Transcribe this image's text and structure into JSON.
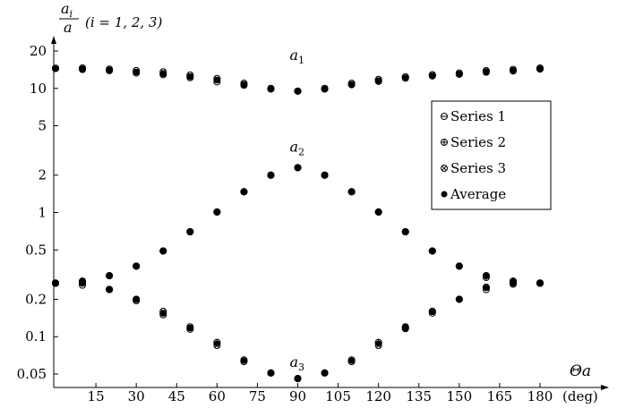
{
  "chart_data": {
    "type": "scatter",
    "title": "",
    "xlabel": "Θa",
    "xunit": "(deg)",
    "ylabel_numerator": "a_i",
    "ylabel_denominator": "a",
    "ylabel_note": "(i = 1, 2, 3)",
    "yscale": "log",
    "xlim": [
      0,
      180
    ],
    "ylim": [
      0.045,
      20
    ],
    "xticks": [
      15,
      30,
      45,
      60,
      75,
      90,
      105,
      120,
      135,
      150,
      165,
      180
    ],
    "yticks": [
      {
        "value": 0.05,
        "label": "0.05"
      },
      {
        "value": 0.1,
        "label": "0.1"
      },
      {
        "value": 0.2,
        "label": "0.2"
      },
      {
        "value": 0.5,
        "label": "0.5"
      },
      {
        "value": 1,
        "label": "1"
      },
      {
        "value": 2,
        "label": "2"
      },
      {
        "value": 5,
        "label": "5"
      },
      {
        "value": 10,
        "label": "10"
      },
      {
        "value": 20,
        "label": "20"
      }
    ],
    "grid": false,
    "legend": {
      "placement": "right"
    },
    "x": [
      0,
      10,
      20,
      30,
      40,
      50,
      60,
      70,
      80,
      90,
      100,
      110,
      120,
      130,
      140,
      150,
      160,
      170,
      180
    ],
    "series": [
      {
        "name": "Series 1",
        "marker": "circle-hbar",
        "a1": [
          14.5,
          14.2,
          13.9,
          13.3,
          12.9,
          12.2,
          11.3,
          10.6,
          9.9,
          9.5,
          9.9,
          10.7,
          11.4,
          12.1,
          12.6,
          13.0,
          13.5,
          13.8,
          14.3
        ],
        "a2": [
          0.27,
          0.27,
          0.31,
          0.37,
          0.49,
          0.7,
          1.01,
          1.47,
          2.0,
          2.3,
          2.0,
          1.47,
          1.01,
          0.7,
          0.49,
          0.37,
          0.31,
          0.27,
          0.27
        ],
        "a3": [
          0.27,
          0.26,
          0.24,
          0.195,
          0.15,
          0.115,
          0.088,
          0.064,
          0.051,
          0.046,
          0.051,
          0.064,
          0.088,
          0.116,
          0.155,
          0.2,
          0.24,
          0.265,
          0.27
        ]
      },
      {
        "name": "Series 2",
        "marker": "circle-plus",
        "a1": [
          14.5,
          14.4,
          14.1,
          13.6,
          13.2,
          12.5,
          11.7,
          10.8,
          9.9,
          9.5,
          9.9,
          10.8,
          11.6,
          12.2,
          12.7,
          13.1,
          13.7,
          14.0,
          14.4
        ],
        "a2": [
          0.27,
          0.28,
          0.31,
          0.37,
          0.49,
          0.7,
          1.01,
          1.47,
          2.0,
          2.3,
          2.0,
          1.47,
          1.01,
          0.7,
          0.49,
          0.37,
          0.3,
          0.28,
          0.27
        ],
        "a3": [
          0.27,
          0.27,
          0.24,
          0.2,
          0.155,
          0.118,
          0.09,
          0.065,
          0.051,
          0.046,
          0.051,
          0.065,
          0.09,
          0.12,
          0.16,
          0.2,
          0.25,
          0.27,
          0.27
        ]
      },
      {
        "name": "Series 3",
        "marker": "circle-x",
        "a1": [
          14.5,
          14.6,
          14.3,
          13.9,
          13.6,
          12.8,
          12.0,
          11.0,
          10.0,
          9.5,
          10.0,
          11.0,
          11.8,
          12.4,
          12.9,
          13.3,
          13.9,
          14.2,
          14.6
        ],
        "a2": [
          0.27,
          0.28,
          0.31,
          0.37,
          0.49,
          0.7,
          1.01,
          1.47,
          2.0,
          2.3,
          2.0,
          1.47,
          1.01,
          0.7,
          0.49,
          0.37,
          0.31,
          0.28,
          0.27
        ],
        "a3": [
          0.27,
          0.28,
          0.24,
          0.2,
          0.16,
          0.12,
          0.085,
          0.063,
          0.051,
          0.046,
          0.051,
          0.063,
          0.085,
          0.118,
          0.16,
          0.2,
          0.25,
          0.28,
          0.27
        ]
      },
      {
        "name": "Average",
        "marker": "filled-circle",
        "a1": [
          14.5,
          14.4,
          14.1,
          13.6,
          13.2,
          12.5,
          11.7,
          10.8,
          9.9,
          9.5,
          9.9,
          10.8,
          11.6,
          12.2,
          12.7,
          13.1,
          13.7,
          14.0,
          14.4
        ],
        "a2": [
          0.27,
          0.28,
          0.31,
          0.37,
          0.49,
          0.7,
          1.01,
          1.47,
          2.0,
          2.3,
          2.0,
          1.47,
          1.01,
          0.7,
          0.49,
          0.37,
          0.31,
          0.28,
          0.27
        ],
        "a3": [
          0.27,
          0.27,
          0.24,
          0.2,
          0.155,
          0.118,
          0.088,
          0.064,
          0.051,
          0.046,
          0.051,
          0.064,
          0.088,
          0.118,
          0.158,
          0.2,
          0.247,
          0.272,
          0.27
        ]
      }
    ],
    "annotations": [
      {
        "text": "a1",
        "main": "a",
        "sub": "1",
        "x": 90,
        "y": 17
      },
      {
        "text": "a2",
        "main": "a",
        "sub": "2",
        "x": 90,
        "y": 3.1
      },
      {
        "text": "a3",
        "main": "a",
        "sub": "3",
        "x": 90,
        "y": 0.057
      }
    ]
  }
}
